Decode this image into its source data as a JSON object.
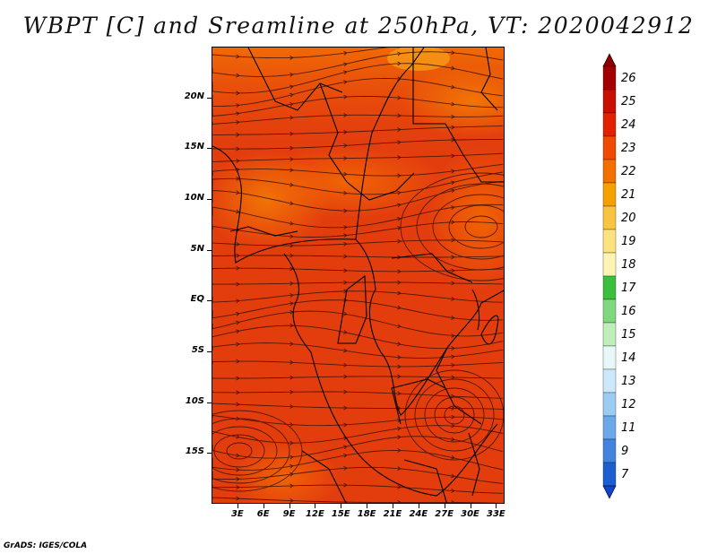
{
  "title": "WBPT [C] and Sreamline at 250hPa, VT: 2020042912",
  "credit": "GrADS: IGES/COLA",
  "map": {
    "lon_labels": [
      "3E",
      "6E",
      "9E",
      "12E",
      "15E",
      "18E",
      "21E",
      "24E",
      "27E",
      "30E",
      "33E"
    ],
    "lat_labels": [
      "20N",
      "15N",
      "10N",
      "5N",
      "EQ",
      "5S",
      "10S",
      "15S"
    ],
    "lon_range": [
      0,
      34
    ],
    "lat_range": [
      -20,
      25
    ]
  },
  "colorbar": {
    "labels": [
      "26",
      "25",
      "24",
      "23",
      "22",
      "21",
      "20",
      "19",
      "18",
      "17",
      "16",
      "15",
      "14",
      "13",
      "12",
      "11",
      "9",
      "7"
    ],
    "colors": [
      "#a50000",
      "#c80f00",
      "#e32000",
      "#f04a00",
      "#f26f00",
      "#f7a100",
      "#f9c440",
      "#fce27c",
      "#fdf4b4",
      "#3cbf3c",
      "#7fd87f",
      "#bfeebb",
      "#e8f8f8",
      "#cde8fb",
      "#9ccbf3",
      "#6ba8ea",
      "#4383df",
      "#1d5fd1"
    ],
    "arrow_top_color": "#8b0000",
    "arrow_bottom_color": "#1144cc"
  }
}
